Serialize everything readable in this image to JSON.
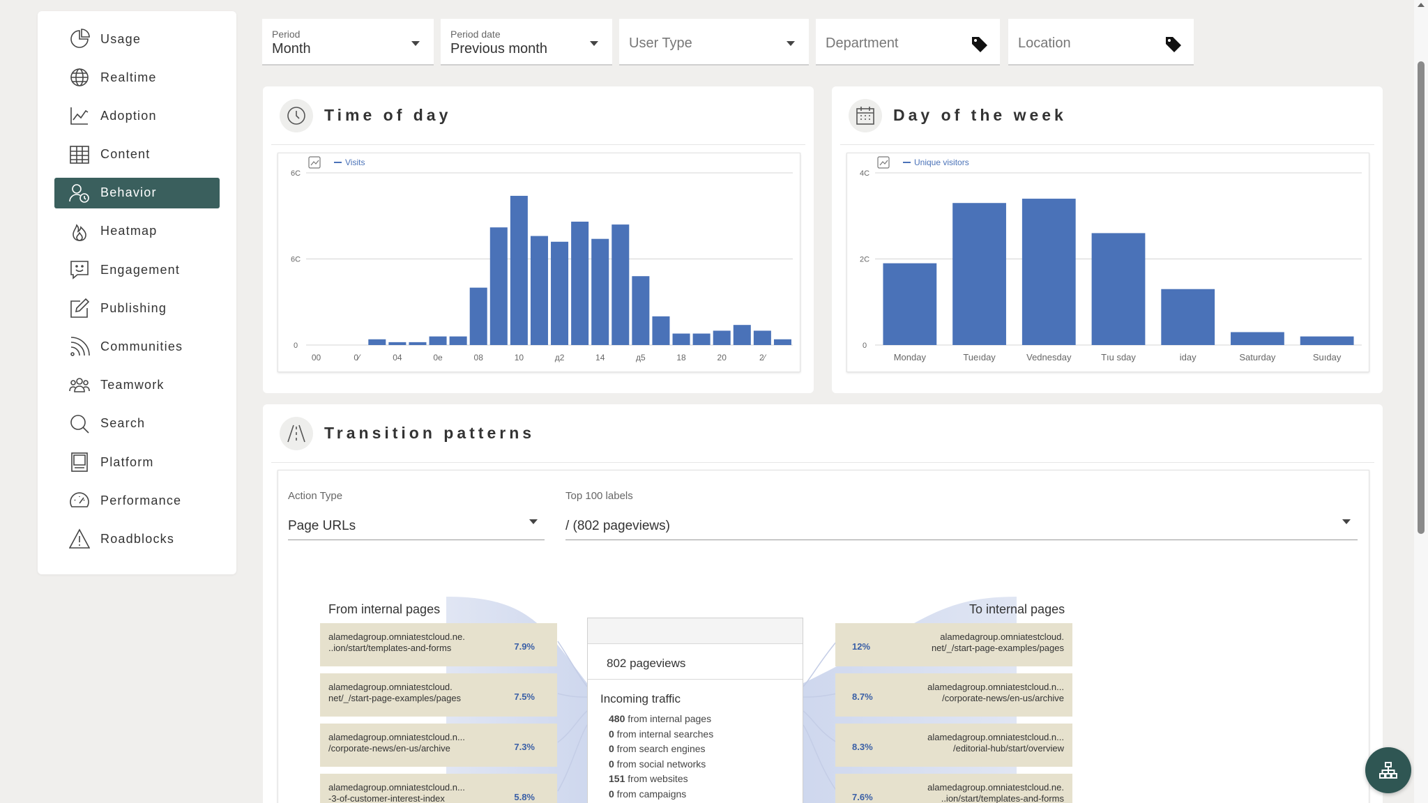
{
  "sidebar": {
    "items": [
      {
        "label": "Usage",
        "icon": "pie-chart-icon",
        "active": false
      },
      {
        "label": "Realtime",
        "icon": "globe-icon",
        "active": false
      },
      {
        "label": "Adoption",
        "icon": "trend-chart-icon",
        "active": false
      },
      {
        "label": "Content",
        "icon": "table-icon",
        "active": false
      },
      {
        "label": "Behavior",
        "icon": "user-clock-icon",
        "active": true
      },
      {
        "label": "Heatmap",
        "icon": "flame-icon",
        "active": false
      },
      {
        "label": "Engagement",
        "icon": "smile-chat-icon",
        "active": false
      },
      {
        "label": "Publishing",
        "icon": "edit-icon",
        "active": false
      },
      {
        "label": "Communities",
        "icon": "feed-icon",
        "active": false
      },
      {
        "label": "Teamwork",
        "icon": "team-icon",
        "active": false
      },
      {
        "label": "Search",
        "icon": "search-icon",
        "active": false
      },
      {
        "label": "Platform",
        "icon": "monitor-icon",
        "active": false
      },
      {
        "label": "Performance",
        "icon": "gauge-icon",
        "active": false
      },
      {
        "label": "Roadblocks",
        "icon": "warning-icon",
        "active": false
      }
    ],
    "active_color": "#3a5f5d"
  },
  "filters": {
    "period": {
      "label": "Period",
      "value": "Month"
    },
    "period_date": {
      "label": "Period date",
      "value": "Previous month"
    },
    "user_type": {
      "placeholder": "User Type"
    },
    "department": {
      "placeholder": "Department"
    },
    "location": {
      "placeholder": "Location"
    }
  },
  "time_of_day": {
    "title": "Time of day",
    "legend": "Visits"
  },
  "day_of_week": {
    "title": "Day of the week",
    "legend": "Unique visitors"
  },
  "chart_data": [
    {
      "type": "bar",
      "legend": "Visits",
      "categories": [
        "00",
        "01",
        "02",
        "03",
        "04",
        "05",
        "06",
        "07",
        "08",
        "09",
        "10",
        "11",
        "12",
        "13",
        "14",
        "15",
        "16",
        "17",
        "18",
        "19",
        "20",
        "21",
        "22",
        "23"
      ],
      "x_tick_labels": [
        "00",
        "0⁄",
        "04",
        "0е",
        "08",
        "10",
        "д2",
        "14",
        "д5",
        "18",
        "20",
        "2⁄"
      ],
      "series": [
        {
          "values": [
            0,
            0,
            0,
            2,
            1,
            1,
            3,
            3,
            20,
            41,
            52,
            38,
            36,
            43,
            37,
            42,
            24,
            10,
            4,
            4,
            5,
            7,
            5,
            2
          ]
        }
      ],
      "y_tick_labels": [
        "6C",
        "6C",
        "0"
      ],
      "ylim": [
        0,
        60
      ],
      "grid": true,
      "legend_position": "top-left",
      "color": "#4a72b8"
    },
    {
      "type": "bar",
      "legend": "Unique visitors",
      "categories": [
        "Monday",
        "Tueıday",
        "Vednesday",
        "Tıu sday",
        "iday",
        "Saturday",
        "Suıday"
      ],
      "series": [
        {
          "values": [
            19,
            33,
            34,
            26,
            13,
            3,
            2
          ]
        }
      ],
      "y_tick_labels": [
        "4C",
        "2C",
        "0"
      ],
      "ylim": [
        0,
        40
      ],
      "grid": true,
      "legend_position": "top-left",
      "color": "#4a72b8"
    }
  ],
  "transition": {
    "title": "Transition patterns",
    "action_type": {
      "label": "Action Type",
      "value": "Page URLs"
    },
    "top_labels": {
      "label": "Top 100 labels",
      "value": "/ (802 pageviews)"
    },
    "from_title": "From internal pages",
    "to_title": "To internal pages",
    "from_items": [
      {
        "line1": "alamedagroup.omniatestcloud.ne.",
        "line2": "..ion/start/templates-and-forms",
        "pct": "7.9%"
      },
      {
        "line1": "alamedagroup.omniatestcloud.",
        "line2": "net/_/start-page-examples/pages",
        "pct": "7.5%"
      },
      {
        "line1": "alamedagroup.omniatestcloud.n...",
        "line2": "/corporate-news/en-us/archive",
        "pct": "7.3%"
      },
      {
        "line1": "alamedagroup.omniatestcloud.n...",
        "line2": "-3-of-customer-interest-index",
        "pct": "5.8%"
      }
    ],
    "to_items": [
      {
        "line1": "alamedagroup.omniatestcloud.",
        "line2": "net/_/start-page-examples/pages",
        "pct": "12%"
      },
      {
        "line1": "alamedagroup.omniatestcloud.n...",
        "line2": "/corporate-news/en-us/archive",
        "pct": "8.7%"
      },
      {
        "line1": "alamedagroup.omniatestcloud.n...",
        "line2": "/editorial-hub/start/overview",
        "pct": "8.3%"
      },
      {
        "line1": "alamedagroup.omniatestcloud.ne.",
        "line2": "..ion/start/templates-and-forms",
        "pct": "7.6%"
      }
    ],
    "center": {
      "pageviews": "802 pageviews",
      "incoming_title": "Incoming traffic",
      "lines": [
        {
          "num": "480",
          "text": " from internal pages"
        },
        {
          "num": "0",
          "text": " from internal searches"
        },
        {
          "num": "0",
          "text": " from search engines"
        },
        {
          "num": "0",
          "text": " from social networks"
        },
        {
          "num": "151",
          "text": " from websites"
        },
        {
          "num": "0",
          "text": " from campaigns"
        }
      ]
    }
  },
  "fab": {
    "icon": "sitemap-icon"
  }
}
